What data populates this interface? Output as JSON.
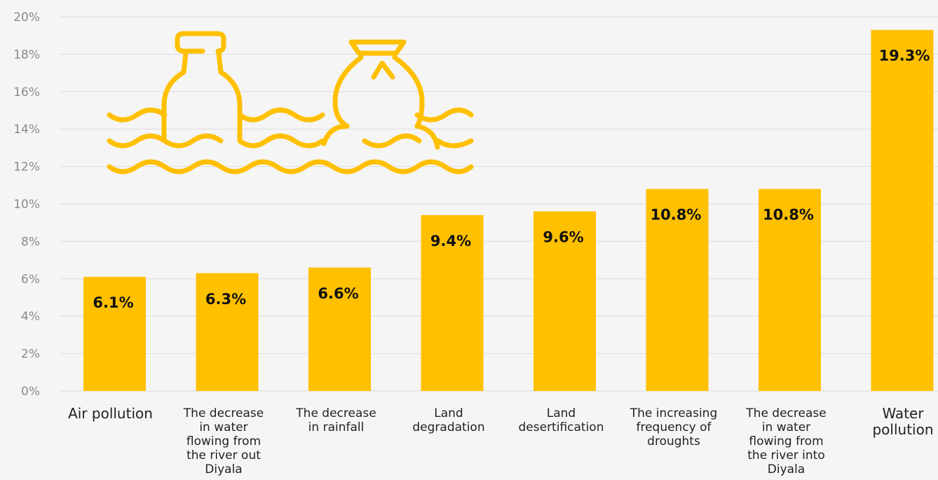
{
  "chart_data": {
    "type": "bar",
    "categories": [
      "Air pollution",
      "The decrease in water flowing from the river out Diyala",
      "The decrease in rainfall",
      "Land degradation",
      "Land desertification",
      "The increasing frequency of droughts",
      "The decrease in water flowing from the river into Diyala",
      "Water pollution"
    ],
    "category_lines": [
      [
        "Air pollution"
      ],
      [
        "The decrease",
        "in water",
        "flowing from",
        "the river out",
        "Diyala"
      ],
      [
        "The decrease",
        "in rainfall"
      ],
      [
        "Land",
        "degradation"
      ],
      [
        "Land",
        "desertification"
      ],
      [
        "The increasing",
        "frequency of",
        "droughts"
      ],
      [
        "The decrease",
        "in water",
        "flowing from",
        "the river into",
        "Diyala"
      ],
      [
        "Water",
        "pollution"
      ]
    ],
    "values": [
      6.1,
      6.3,
      6.6,
      9.4,
      9.6,
      10.8,
      10.8,
      19.3
    ],
    "data_labels": [
      "6.1%",
      "6.3%",
      "6.6%",
      "9.4%",
      "9.6%",
      "10.8%",
      "10.8%",
      "19.3%"
    ],
    "y_ticks": [
      "0%",
      "2%",
      "4%",
      "6%",
      "8%",
      "10%",
      "12%",
      "14%",
      "16%",
      "18%",
      "20%"
    ],
    "ylim": [
      0,
      20
    ],
    "grid": true,
    "title": "",
    "xlabel": "",
    "ylabel": ""
  },
  "colors": {
    "bar": "#FFC000",
    "icon": "#FFC000",
    "grid": "#dcdcdc",
    "background": "#f5f5f5"
  },
  "icons": {
    "decoration": "bottle-and-bag-floating-in-water-icon"
  }
}
